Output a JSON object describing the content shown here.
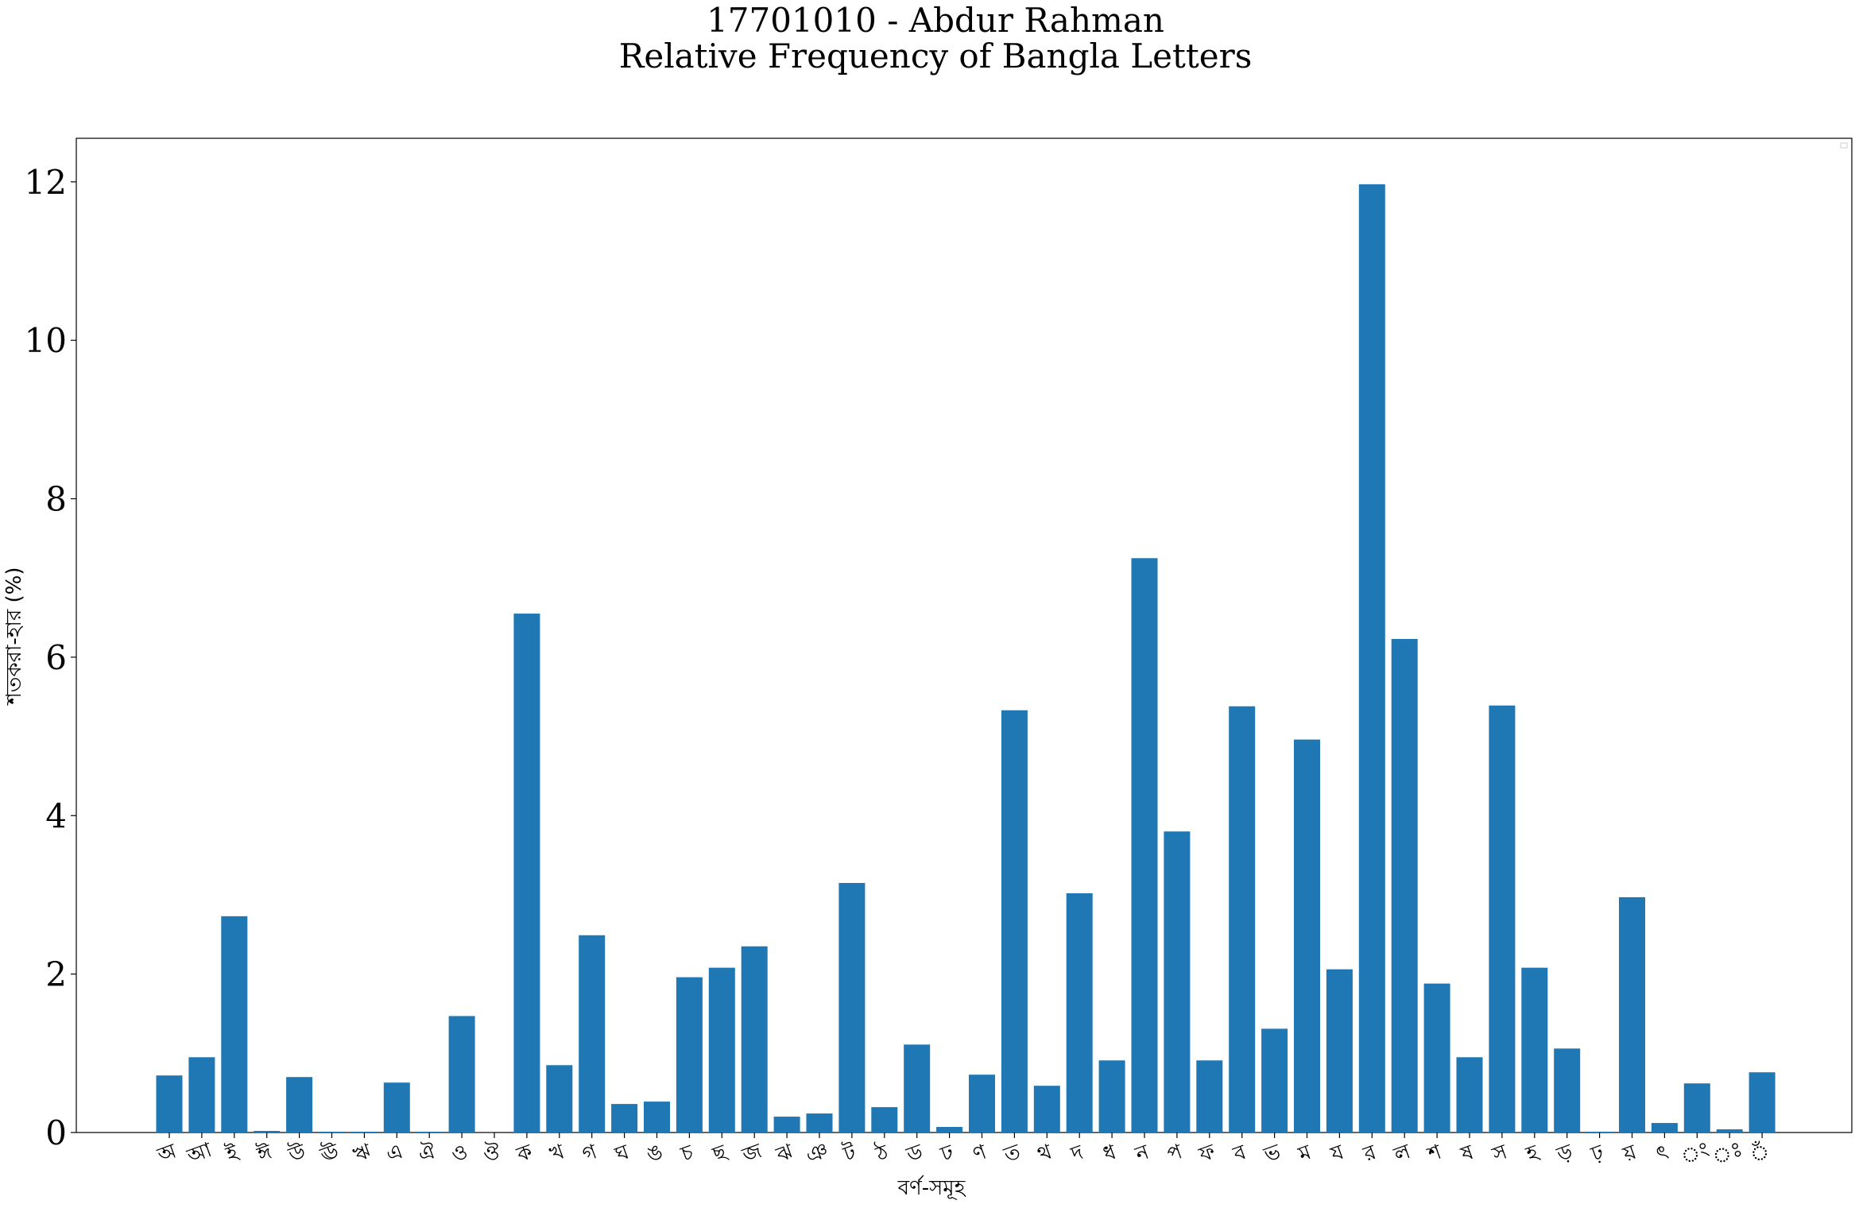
{
  "chart_data": {
    "type": "bar",
    "title": [
      "17701010 - Abdur Rahman",
      "Relative Frequency of Bangla Letters"
    ],
    "xlabel": "বর্ণ-সমূহ",
    "ylabel": "শতকরা-হার (%)",
    "ylim": [
      0,
      12.55
    ],
    "yticks": [
      0,
      2,
      4,
      6,
      8,
      10,
      12
    ],
    "bar_color": "#1f77b4",
    "grid": false,
    "legend": "top-right (empty)",
    "categories": [
      "অ",
      "আ",
      "ই",
      "ঈ",
      "উ",
      "ঊ",
      "ঋ",
      "এ",
      "ঐ",
      "ও",
      "ঔ",
      "ক",
      "খ",
      "গ",
      "ঘ",
      "ঙ",
      "চ",
      "ছ",
      "জ",
      "ঝ",
      "ঞ",
      "ট",
      "ঠ",
      "ড",
      "ঢ",
      "ণ",
      "ত",
      "থ",
      "দ",
      "ধ",
      "ন",
      "প",
      "ফ",
      "ব",
      "ভ",
      "ম",
      "য",
      "র",
      "ল",
      "শ",
      "ষ",
      "স",
      "হ",
      "ড়",
      "ঢ়",
      "য়",
      "ৎ",
      "ং",
      "ঃ",
      "ঁ"
    ],
    "values": [
      0.72,
      0.95,
      2.73,
      0.02,
      0.7,
      0.01,
      0.01,
      0.63,
      0.01,
      1.47,
      0.0,
      6.55,
      0.85,
      2.49,
      0.36,
      0.39,
      1.96,
      2.08,
      2.35,
      0.2,
      0.24,
      3.15,
      0.32,
      1.11,
      0.07,
      0.73,
      5.33,
      0.59,
      3.02,
      0.91,
      7.25,
      3.8,
      0.91,
      5.38,
      1.31,
      4.96,
      2.06,
      11.97,
      6.23,
      1.88,
      0.95,
      5.39,
      2.08,
      1.06,
      0.01,
      2.97,
      0.12,
      0.62,
      0.04,
      0.76
    ]
  }
}
